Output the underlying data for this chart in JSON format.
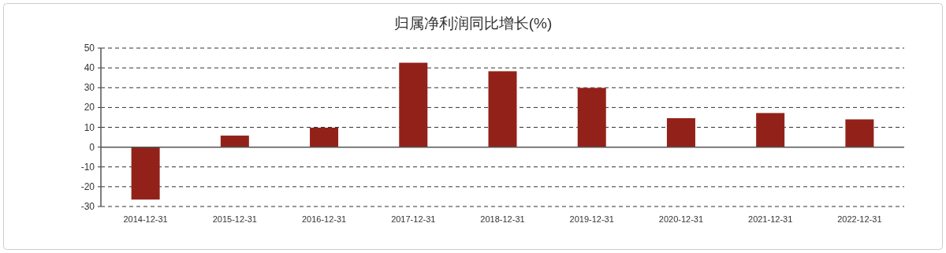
{
  "chart_data": {
    "type": "bar",
    "title": "归属净利润同比增长(%)",
    "categories": [
      "2014-12-31",
      "2015-12-31",
      "2016-12-31",
      "2017-12-31",
      "2018-12-31",
      "2019-12-31",
      "2020-12-31",
      "2021-12-31",
      "2022-12-31"
    ],
    "values": [
      -26.5,
      5.8,
      9.8,
      42.6,
      38.3,
      29.9,
      14.6,
      17.2,
      14.0
    ],
    "color": "#922219",
    "ylim": [
      -30,
      50
    ],
    "yticks": [
      -30,
      -20,
      -10,
      0,
      10,
      20,
      30,
      40,
      50
    ],
    "grid": "y"
  }
}
